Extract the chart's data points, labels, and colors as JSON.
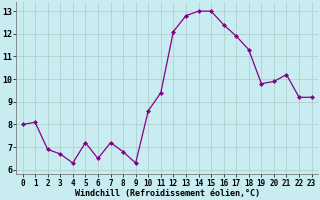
{
  "x": [
    0,
    1,
    2,
    3,
    4,
    5,
    6,
    7,
    8,
    9,
    10,
    11,
    12,
    13,
    14,
    15,
    16,
    17,
    18,
    19,
    20,
    21,
    22,
    23
  ],
  "y": [
    8.0,
    8.1,
    6.9,
    6.7,
    6.3,
    7.2,
    6.5,
    7.2,
    6.8,
    6.3,
    8.6,
    9.4,
    12.1,
    12.8,
    13.0,
    13.0,
    12.4,
    11.9,
    11.3,
    9.8,
    9.9,
    10.2,
    9.2,
    9.2
  ],
  "line_color": "#880088",
  "marker": "D",
  "marker_size": 2.0,
  "background_color": "#c8ecf0",
  "grid_color": "#aacccc",
  "xlabel": "Windchill (Refroidissement éolien,°C)",
  "xlabel_fontsize": 6.0,
  "ylim": [
    5.8,
    13.4
  ],
  "xlim": [
    -0.5,
    23.5
  ],
  "yticks": [
    6,
    7,
    8,
    9,
    10,
    11,
    12,
    13
  ],
  "xticks": [
    0,
    1,
    2,
    3,
    4,
    5,
    6,
    7,
    8,
    9,
    10,
    11,
    12,
    13,
    14,
    15,
    16,
    17,
    18,
    19,
    20,
    21,
    22,
    23
  ],
  "tick_labelsize": 5.5
}
